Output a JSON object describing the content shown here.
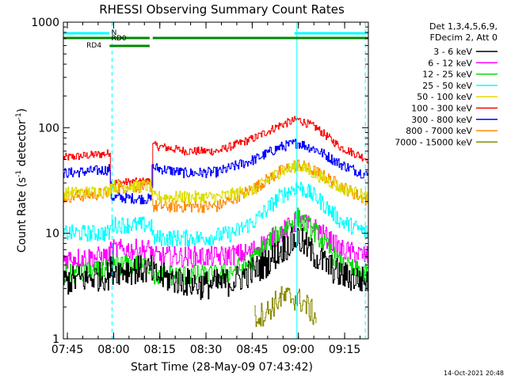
{
  "chart_data": {
    "type": "line",
    "title": "RHESSI Observing Summary Count Rates",
    "xlabel": "Start Time (28-May-09 07:43:42)",
    "ylabel_main": "Count Rate (s",
    "ylabel_sup1": "-1",
    "ylabel_mid": " detector",
    "ylabel_sup2": "-1",
    "ylabel_end": ")",
    "yscale": "log",
    "ylim": [
      1,
      1000
    ],
    "xlim_minutes": [
      0,
      99
    ],
    "x_ticks": [
      {
        "label": "07:45",
        "minute": 1.3
      },
      {
        "label": "08:00",
        "minute": 16.3
      },
      {
        "label": "08:15",
        "minute": 31.3
      },
      {
        "label": "08:30",
        "minute": 46.3
      },
      {
        "label": "08:45",
        "minute": 61.3
      },
      {
        "label": "09:00",
        "minute": 76.3
      },
      {
        "label": "09:15",
        "minute": 91.3
      }
    ],
    "y_ticks": [
      {
        "label": "1",
        "value": 1
      },
      {
        "label": "10",
        "value": 10
      },
      {
        "label": "100",
        "value": 100
      },
      {
        "label": "1000",
        "value": 1000
      }
    ],
    "legend_header": [
      "Det 1,3,4,5,6,9,",
      "FDecim 2, Att 0"
    ],
    "legend": [
      {
        "name": "3 - 6 keV",
        "color": "#000000"
      },
      {
        "name": "6 - 12 keV",
        "color": "#ff00ff"
      },
      {
        "name": "12 - 25 keV",
        "color": "#00dd00"
      },
      {
        "name": "25 - 50 keV",
        "color": "#00ffff"
      },
      {
        "name": "50 - 100 keV",
        "color": "#dddd00"
      },
      {
        "name": "100 - 300 keV",
        "color": "#ff0000"
      },
      {
        "name": "300 - 800 keV",
        "color": "#0000ff"
      },
      {
        "name": "800 - 7000 keV",
        "color": "#ff8800"
      },
      {
        "name": "7000 - 15000 keV",
        "color": "#888800"
      }
    ],
    "flags": [
      {
        "label": "N",
        "color": "#00ffff",
        "segments": [
          [
            0,
            15
          ],
          [
            75,
            99
          ]
        ]
      },
      {
        "label": "RD0",
        "color": "#008800",
        "segments": [
          [
            0,
            28
          ],
          [
            29,
            99
          ]
        ]
      },
      {
        "label": "RD4",
        "color": "#008800",
        "segments": [
          [
            15,
            28
          ]
        ]
      }
    ],
    "markers_minutes": [
      15.8,
      75.8,
      98
    ],
    "series": [
      {
        "name": "100 - 300 keV",
        "color": "#ff0000",
        "noise": 0.04,
        "points": [
          [
            0,
            52
          ],
          [
            14.5,
            57
          ],
          [
            15,
            60
          ],
          [
            15.2,
            30
          ],
          [
            28.5,
            31
          ],
          [
            29,
            68
          ],
          [
            40,
            60
          ],
          [
            50,
            60
          ],
          [
            62,
            80
          ],
          [
            70,
            105
          ],
          [
            76,
            120
          ],
          [
            82,
            100
          ],
          [
            90,
            65
          ],
          [
            99,
            50
          ]
        ]
      },
      {
        "name": "300 - 800 keV",
        "color": "#0000ff",
        "noise": 0.05,
        "points": [
          [
            0,
            37
          ],
          [
            14.5,
            40
          ],
          [
            15,
            42
          ],
          [
            15.2,
            22
          ],
          [
            28.5,
            21
          ],
          [
            29,
            42
          ],
          [
            40,
            37
          ],
          [
            50,
            38
          ],
          [
            62,
            50
          ],
          [
            70,
            65
          ],
          [
            76,
            72
          ],
          [
            82,
            62
          ],
          [
            90,
            45
          ],
          [
            99,
            35
          ]
        ]
      },
      {
        "name": "800 - 7000 keV",
        "color": "#ff8800",
        "noise": 0.06,
        "points": [
          [
            0,
            22
          ],
          [
            14.5,
            24
          ],
          [
            15,
            25
          ],
          [
            15.2,
            27
          ],
          [
            28.5,
            28
          ],
          [
            29,
            18
          ],
          [
            40,
            18
          ],
          [
            50,
            18
          ],
          [
            62,
            27
          ],
          [
            70,
            38
          ],
          [
            76,
            45
          ],
          [
            82,
            38
          ],
          [
            90,
            28
          ],
          [
            99,
            20
          ]
        ]
      },
      {
        "name": "50 - 100 keV",
        "color": "#dddd00",
        "noise": 0.06,
        "points": [
          [
            0,
            24
          ],
          [
            14.5,
            25
          ],
          [
            15,
            26
          ],
          [
            15.2,
            28
          ],
          [
            28.5,
            28
          ],
          [
            29,
            22
          ],
          [
            40,
            22
          ],
          [
            50,
            22
          ],
          [
            62,
            26
          ],
          [
            70,
            38
          ],
          [
            76,
            44
          ],
          [
            82,
            36
          ],
          [
            90,
            27
          ],
          [
            99,
            22
          ]
        ]
      },
      {
        "name": "25 - 50 keV",
        "color": "#00ffff",
        "noise": 0.08,
        "points": [
          [
            0,
            10
          ],
          [
            15,
            10
          ],
          [
            15.2,
            12
          ],
          [
            28.5,
            12
          ],
          [
            29,
            9
          ],
          [
            45,
            9
          ],
          [
            55,
            10
          ],
          [
            62,
            13
          ],
          [
            70,
            22
          ],
          [
            76,
            28
          ],
          [
            82,
            22
          ],
          [
            90,
            13
          ],
          [
            99,
            10
          ]
        ]
      },
      {
        "name": "6 - 12 keV",
        "color": "#ff00ff",
        "noise": 0.1,
        "points": [
          [
            0,
            5.8
          ],
          [
            15,
            6
          ],
          [
            15.2,
            7
          ],
          [
            28.5,
            7
          ],
          [
            29,
            6
          ],
          [
            50,
            6
          ],
          [
            60,
            6.5
          ],
          [
            68,
            9
          ],
          [
            76,
            13
          ],
          [
            82,
            11
          ],
          [
            90,
            7
          ],
          [
            99,
            6
          ]
        ]
      },
      {
        "name": "12 - 25 keV",
        "color": "#00dd00",
        "noise": 0.1,
        "points": [
          [
            0,
            4
          ],
          [
            15,
            4.5
          ],
          [
            15.2,
            5
          ],
          [
            28.5,
            5
          ],
          [
            29,
            4
          ],
          [
            50,
            4
          ],
          [
            60,
            5
          ],
          [
            68,
            9
          ],
          [
            76,
            14
          ],
          [
            82,
            10
          ],
          [
            90,
            5
          ],
          [
            99,
            4
          ]
        ]
      },
      {
        "name": "3 - 6 keV",
        "color": "#000000",
        "noise": 0.14,
        "points": [
          [
            0,
            3.5
          ],
          [
            15,
            4
          ],
          [
            15.2,
            4.5
          ],
          [
            28.5,
            4.5
          ],
          [
            29,
            4
          ],
          [
            45,
            3.2
          ],
          [
            55,
            3.5
          ],
          [
            65,
            5
          ],
          [
            72,
            7.5
          ],
          [
            76,
            9
          ],
          [
            82,
            6
          ],
          [
            90,
            4
          ],
          [
            99,
            3.5
          ]
        ]
      },
      {
        "name": "7000 - 15000 keV",
        "color": "#888800",
        "noise": 0.12,
        "points": [
          [
            62,
            1.6
          ],
          [
            66,
            1.8
          ],
          [
            70,
            2.4
          ],
          [
            74,
            2.5
          ],
          [
            78,
            2.2
          ],
          [
            82,
            1.6
          ]
        ]
      }
    ],
    "timestamp": "14-Oct-2021 20:48"
  }
}
